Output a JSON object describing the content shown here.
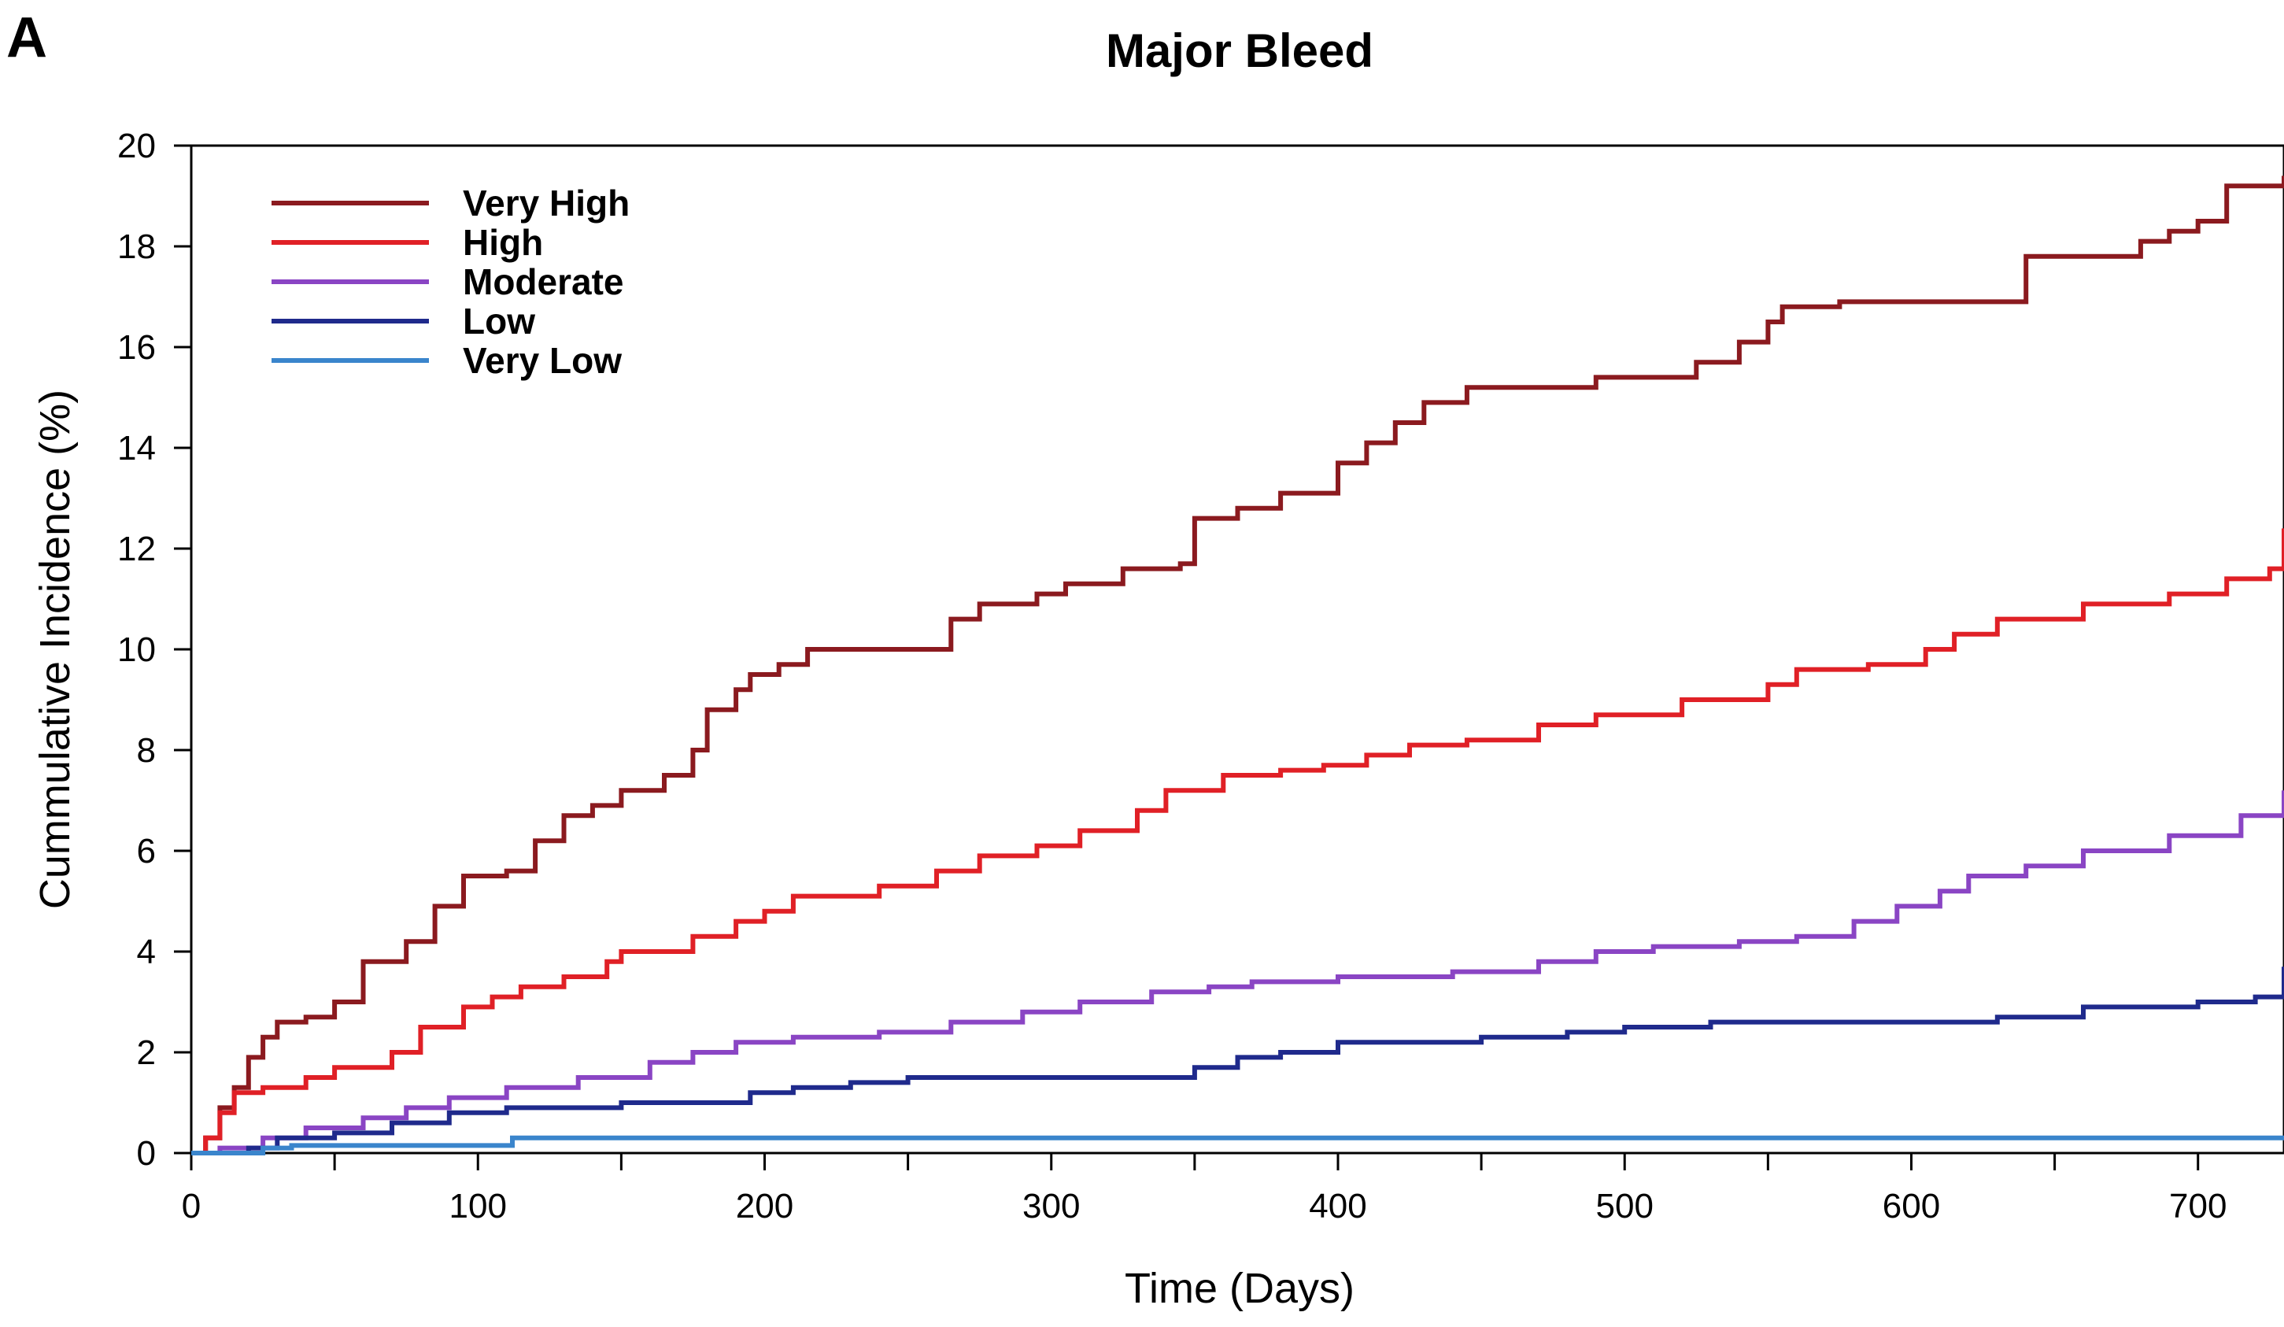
{
  "panel_label": "A",
  "chart_data": {
    "type": "line",
    "step": true,
    "title": "Major Bleed",
    "xlabel": "Time (Days)",
    "ylabel": "Cummulative Incidence (%)",
    "xlim": [
      0,
      730
    ],
    "ylim": [
      0,
      20
    ],
    "x_ticks": [
      0,
      100,
      200,
      300,
      400,
      500,
      600,
      700
    ],
    "x_minor_ticks": [
      50,
      150,
      250,
      350,
      450,
      550,
      650
    ],
    "y_ticks": [
      0,
      2,
      4,
      6,
      8,
      10,
      12,
      14,
      16,
      18,
      20
    ],
    "grid": false,
    "legend_position": "top-left",
    "series": [
      {
        "name": "Very High",
        "color": "#8b1a1f",
        "points": [
          [
            0,
            0
          ],
          [
            5,
            0.3
          ],
          [
            10,
            0.9
          ],
          [
            15,
            1.3
          ],
          [
            20,
            1.9
          ],
          [
            25,
            2.3
          ],
          [
            30,
            2.6
          ],
          [
            40,
            2.7
          ],
          [
            50,
            3.0
          ],
          [
            60,
            3.8
          ],
          [
            75,
            4.2
          ],
          [
            85,
            4.9
          ],
          [
            95,
            5.5
          ],
          [
            110,
            5.6
          ],
          [
            120,
            6.2
          ],
          [
            130,
            6.7
          ],
          [
            140,
            6.9
          ],
          [
            150,
            7.2
          ],
          [
            165,
            7.5
          ],
          [
            175,
            8.0
          ],
          [
            180,
            8.8
          ],
          [
            190,
            9.2
          ],
          [
            195,
            9.5
          ],
          [
            205,
            9.7
          ],
          [
            215,
            10.0
          ],
          [
            240,
            10.0
          ],
          [
            265,
            10.6
          ],
          [
            275,
            10.9
          ],
          [
            295,
            11.1
          ],
          [
            305,
            11.3
          ],
          [
            325,
            11.6
          ],
          [
            345,
            11.7
          ],
          [
            350,
            12.6
          ],
          [
            365,
            12.8
          ],
          [
            380,
            13.1
          ],
          [
            400,
            13.7
          ],
          [
            410,
            14.1
          ],
          [
            420,
            14.5
          ],
          [
            430,
            14.9
          ],
          [
            445,
            15.2
          ],
          [
            490,
            15.4
          ],
          [
            525,
            15.7
          ],
          [
            540,
            16.1
          ],
          [
            550,
            16.5
          ],
          [
            555,
            16.8
          ],
          [
            575,
            16.9
          ],
          [
            630,
            16.9
          ],
          [
            640,
            17.8
          ],
          [
            665,
            17.8
          ],
          [
            680,
            18.1
          ],
          [
            690,
            18.3
          ],
          [
            700,
            18.5
          ],
          [
            710,
            19.2
          ],
          [
            730,
            19.4
          ]
        ]
      },
      {
        "name": "High",
        "color": "#e02026",
        "points": [
          [
            0,
            0
          ],
          [
            5,
            0.3
          ],
          [
            10,
            0.8
          ],
          [
            15,
            1.2
          ],
          [
            25,
            1.3
          ],
          [
            40,
            1.5
          ],
          [
            50,
            1.7
          ],
          [
            70,
            2.0
          ],
          [
            80,
            2.5
          ],
          [
            95,
            2.9
          ],
          [
            105,
            3.1
          ],
          [
            115,
            3.3
          ],
          [
            130,
            3.5
          ],
          [
            145,
            3.8
          ],
          [
            150,
            4.0
          ],
          [
            175,
            4.3
          ],
          [
            190,
            4.6
          ],
          [
            200,
            4.8
          ],
          [
            210,
            5.1
          ],
          [
            240,
            5.3
          ],
          [
            260,
            5.6
          ],
          [
            275,
            5.9
          ],
          [
            295,
            6.1
          ],
          [
            310,
            6.4
          ],
          [
            330,
            6.8
          ],
          [
            340,
            7.2
          ],
          [
            360,
            7.5
          ],
          [
            380,
            7.6
          ],
          [
            395,
            7.7
          ],
          [
            410,
            7.9
          ],
          [
            425,
            8.1
          ],
          [
            445,
            8.2
          ],
          [
            470,
            8.5
          ],
          [
            490,
            8.7
          ],
          [
            520,
            9.0
          ],
          [
            550,
            9.3
          ],
          [
            560,
            9.6
          ],
          [
            585,
            9.7
          ],
          [
            605,
            10.0
          ],
          [
            615,
            10.3
          ],
          [
            630,
            10.6
          ],
          [
            660,
            10.9
          ],
          [
            690,
            11.1
          ],
          [
            710,
            11.4
          ],
          [
            725,
            11.6
          ],
          [
            730,
            12.4
          ]
        ]
      },
      {
        "name": "Moderate",
        "color": "#8a45c4",
        "points": [
          [
            0,
            0
          ],
          [
            10,
            0.1
          ],
          [
            25,
            0.3
          ],
          [
            40,
            0.5
          ],
          [
            60,
            0.7
          ],
          [
            75,
            0.9
          ],
          [
            90,
            1.1
          ],
          [
            110,
            1.3
          ],
          [
            135,
            1.5
          ],
          [
            160,
            1.8
          ],
          [
            175,
            2.0
          ],
          [
            190,
            2.2
          ],
          [
            210,
            2.3
          ],
          [
            240,
            2.4
          ],
          [
            265,
            2.6
          ],
          [
            290,
            2.8
          ],
          [
            310,
            3.0
          ],
          [
            335,
            3.2
          ],
          [
            355,
            3.3
          ],
          [
            370,
            3.4
          ],
          [
            400,
            3.5
          ],
          [
            440,
            3.6
          ],
          [
            470,
            3.8
          ],
          [
            490,
            4.0
          ],
          [
            510,
            4.1
          ],
          [
            540,
            4.2
          ],
          [
            560,
            4.3
          ],
          [
            580,
            4.6
          ],
          [
            595,
            4.9
          ],
          [
            610,
            5.2
          ],
          [
            620,
            5.5
          ],
          [
            640,
            5.7
          ],
          [
            660,
            6.0
          ],
          [
            690,
            6.3
          ],
          [
            715,
            6.7
          ],
          [
            730,
            7.2
          ]
        ]
      },
      {
        "name": "Low",
        "color": "#1f2a8c",
        "points": [
          [
            0,
            0
          ],
          [
            20,
            0.1
          ],
          [
            30,
            0.3
          ],
          [
            50,
            0.4
          ],
          [
            70,
            0.6
          ],
          [
            90,
            0.8
          ],
          [
            110,
            0.9
          ],
          [
            150,
            1.0
          ],
          [
            180,
            1.0
          ],
          [
            195,
            1.2
          ],
          [
            210,
            1.3
          ],
          [
            230,
            1.4
          ],
          [
            250,
            1.5
          ],
          [
            275,
            1.5
          ],
          [
            345,
            1.5
          ],
          [
            350,
            1.7
          ],
          [
            365,
            1.9
          ],
          [
            380,
            2.0
          ],
          [
            400,
            2.2
          ],
          [
            420,
            2.2
          ],
          [
            450,
            2.3
          ],
          [
            480,
            2.4
          ],
          [
            500,
            2.5
          ],
          [
            530,
            2.6
          ],
          [
            580,
            2.6
          ],
          [
            620,
            2.6
          ],
          [
            630,
            2.7
          ],
          [
            660,
            2.9
          ],
          [
            700,
            3.0
          ],
          [
            720,
            3.1
          ],
          [
            730,
            3.7
          ]
        ]
      },
      {
        "name": "Very Low",
        "color": "#3a85cc",
        "points": [
          [
            0,
            0
          ],
          [
            25,
            0.1
          ],
          [
            35,
            0.15
          ],
          [
            110,
            0.15
          ],
          [
            112,
            0.3
          ],
          [
            730,
            0.3
          ]
        ]
      }
    ]
  }
}
